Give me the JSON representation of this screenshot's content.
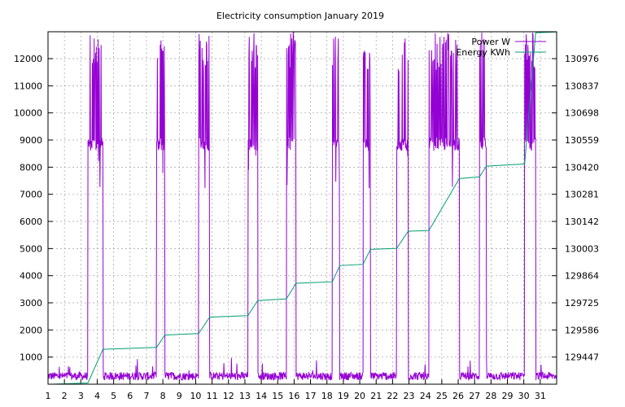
{
  "chart_data": {
    "type": "line",
    "title": "Electricity consumption January 2019",
    "xlabel": "",
    "ylabel": "",
    "y2label": "",
    "grid": true,
    "legend_position": "top-right",
    "xlim": [
      1,
      32
    ],
    "x_ticks": [
      1,
      2,
      3,
      4,
      5,
      6,
      7,
      8,
      9,
      10,
      11,
      12,
      13,
      14,
      15,
      16,
      17,
      18,
      19,
      20,
      21,
      22,
      23,
      24,
      25,
      26,
      27,
      28,
      29,
      30,
      31
    ],
    "ylim": [
      0,
      12991
    ],
    "y_ticks": [
      1000,
      2000,
      3000,
      4000,
      5000,
      6000,
      7000,
      8000,
      9000,
      10000,
      11000,
      12000
    ],
    "y2_ticks": [
      "129447",
      "129586",
      "129725",
      "129864",
      "130003",
      "130142",
      "130281",
      "130420",
      "130559",
      "130698",
      "130837",
      "130976"
    ],
    "y2lim": [
      129405.3,
      131038.6
    ],
    "series": [
      {
        "name": "Power W",
        "axis": "y1",
        "color": "#9400d3",
        "baseline_noise": [
          150,
          450
        ],
        "segments": [
          {
            "start": 3.43,
            "end": 4.35
          },
          {
            "start": 7.62,
            "end": 8.12
          },
          {
            "start": 10.18,
            "end": 10.85
          },
          {
            "start": 13.18,
            "end": 13.78
          },
          {
            "start": 15.53,
            "end": 16.12
          },
          {
            "start": 18.33,
            "end": 18.78
          },
          {
            "start": 20.2,
            "end": 20.65
          },
          {
            "start": 22.25,
            "end": 22.95
          },
          {
            "start": 24.22,
            "end": 26.07
          },
          {
            "start": 27.3,
            "end": 27.72
          },
          {
            "start": 30.05,
            "end": 30.72
          }
        ]
      },
      {
        "name": "Energy KWh",
        "axis": "y2",
        "color": "#009e73",
        "x": [
          1,
          3.43,
          4.35,
          7.62,
          8.12,
          10.18,
          10.85,
          13.18,
          13.78,
          15.53,
          16.12,
          18.33,
          18.78,
          20.2,
          20.65,
          22.25,
          22.95,
          24.22,
          26.07,
          27.3,
          27.72,
          30.05,
          30.72,
          32
        ],
        "values": [
          129405,
          129411,
          129567,
          129576,
          129633,
          129640,
          129716,
          129723,
          129793,
          129801,
          129873,
          129880,
          129955,
          129961,
          130030,
          130035,
          130114,
          130118,
          130358,
          130366,
          130416,
          130426,
          131034,
          131038
        ]
      }
    ]
  }
}
